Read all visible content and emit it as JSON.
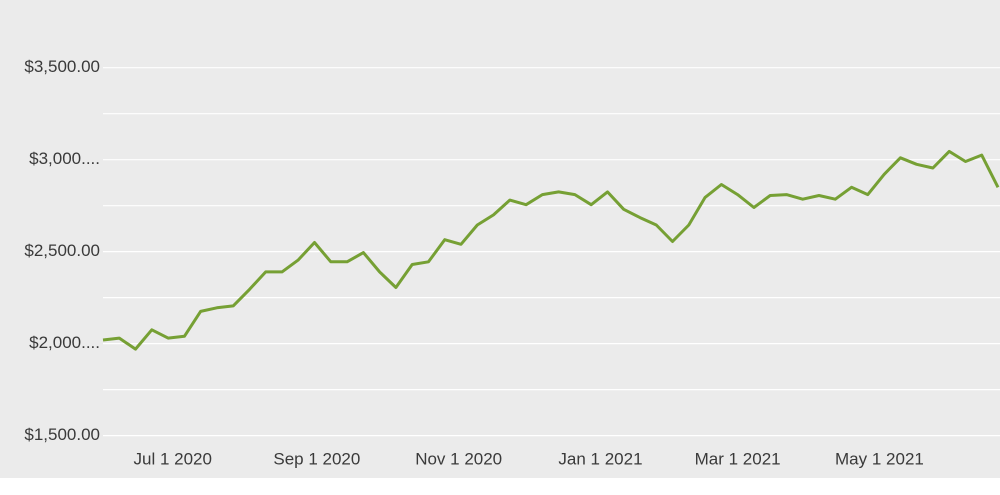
{
  "chart_data": {
    "type": "line",
    "x": [
      "2020-06-01",
      "2020-06-08",
      "2020-06-15",
      "2020-06-22",
      "2020-06-29",
      "2020-07-06",
      "2020-07-13",
      "2020-07-20",
      "2020-07-27",
      "2020-08-03",
      "2020-08-10",
      "2020-08-17",
      "2020-08-24",
      "2020-08-31",
      "2020-09-07",
      "2020-09-14",
      "2020-09-21",
      "2020-09-28",
      "2020-10-05",
      "2020-10-12",
      "2020-10-19",
      "2020-10-26",
      "2020-11-02",
      "2020-11-09",
      "2020-11-16",
      "2020-11-23",
      "2020-11-30",
      "2020-12-07",
      "2020-12-14",
      "2020-12-21",
      "2020-12-28",
      "2021-01-04",
      "2021-01-11",
      "2021-01-18",
      "2021-01-25",
      "2021-02-01",
      "2021-02-08",
      "2021-02-15",
      "2021-02-22",
      "2021-03-01",
      "2021-03-08",
      "2021-03-15",
      "2021-03-22",
      "2021-03-29",
      "2021-04-05",
      "2021-04-12",
      "2021-04-19",
      "2021-04-26",
      "2021-05-03",
      "2021-05-10",
      "2021-05-17",
      "2021-05-24",
      "2021-05-31",
      "2021-06-07",
      "2021-06-14",
      "2021-06-21"
    ],
    "values": [
      2020,
      2030,
      1970,
      2075,
      2030,
      2040,
      2175,
      2195,
      2205,
      2295,
      2390,
      2390,
      2455,
      2550,
      2445,
      2445,
      2495,
      2390,
      2305,
      2430,
      2445,
      2565,
      2540,
      2645,
      2700,
      2780,
      2755,
      2810,
      2825,
      2810,
      2755,
      2825,
      2730,
      2685,
      2645,
      2555,
      2645,
      2795,
      2865,
      2810,
      2740,
      2805,
      2810,
      2785,
      2805,
      2785,
      2850,
      2810,
      2920,
      3010,
      2975,
      2955,
      3045,
      2990,
      3025,
      2850
    ],
    "color": "#76a034",
    "xlim": [
      "2020-06-01",
      "2021-06-21"
    ],
    "xticks": [
      {
        "value": "2020-07-01",
        "label": "Jul 1 2020"
      },
      {
        "value": "2020-09-01",
        "label": "Sep 1 2020"
      },
      {
        "value": "2020-11-01",
        "label": "Nov 1 2020"
      },
      {
        "value": "2021-01-01",
        "label": "Jan 1 2021"
      },
      {
        "value": "2021-03-01",
        "label": "Mar 1 2021"
      },
      {
        "value": "2021-05-01",
        "label": "May 1 2021"
      }
    ],
    "ylim": [
      1400,
      3830
    ],
    "yticks": [
      {
        "value": 1500,
        "label": "$1,500.00"
      },
      {
        "value": 2000,
        "label": "$2,000...."
      },
      {
        "value": 2500,
        "label": "$2,500.00"
      },
      {
        "value": 3000,
        "label": "$3,000...."
      },
      {
        "value": 3500,
        "label": "$3,500.00"
      }
    ],
    "yticks_minor": [
      1750,
      2250,
      2750,
      3250
    ],
    "grid": true
  }
}
